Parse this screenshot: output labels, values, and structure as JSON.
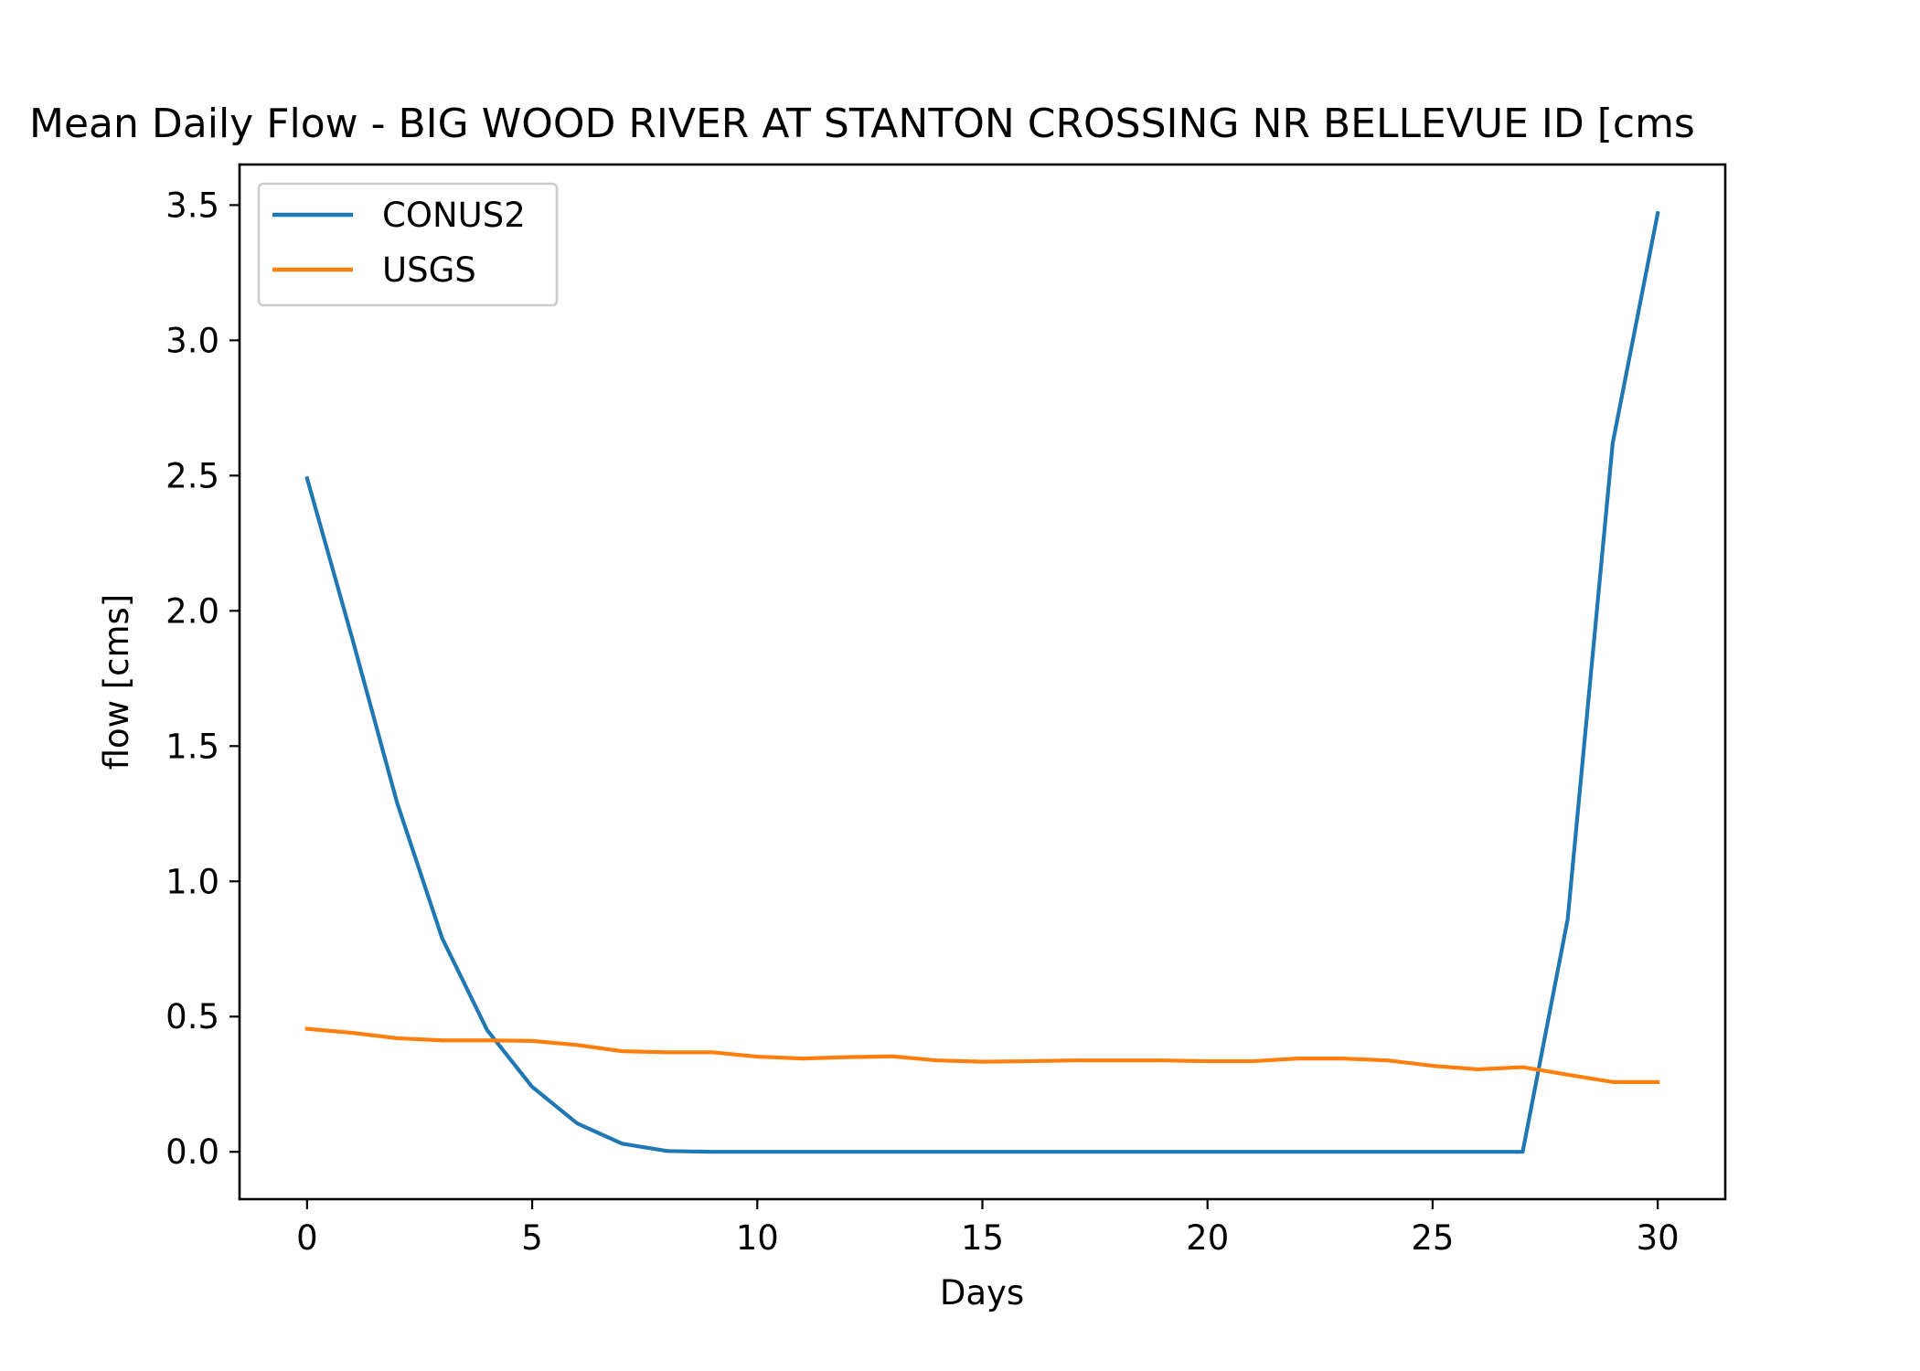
{
  "chart_data": {
    "type": "line",
    "title": "Mean Daily Flow - BIG WOOD RIVER AT STANTON CROSSING NR BELLEVUE ID [cms",
    "xlabel": "Days",
    "ylabel": "flow [cms]",
    "xlim": [
      -1.5,
      31.5
    ],
    "ylim": [
      -0.175,
      3.65
    ],
    "xticks": [
      0,
      5,
      10,
      15,
      20,
      25,
      30
    ],
    "yticks": [
      0.0,
      0.5,
      1.0,
      1.5,
      2.0,
      2.5,
      3.0,
      3.5
    ],
    "ytick_labels": [
      "0.0",
      "0.5",
      "1.0",
      "1.5",
      "2.0",
      "2.5",
      "3.0",
      "3.5"
    ],
    "grid": false,
    "legend_position": "top-left",
    "x": [
      0,
      1,
      2,
      3,
      4,
      5,
      6,
      7,
      8,
      9,
      10,
      11,
      12,
      13,
      14,
      15,
      16,
      17,
      18,
      19,
      20,
      21,
      22,
      23,
      24,
      25,
      26,
      27,
      28,
      29,
      30
    ],
    "series": [
      {
        "name": "CONUS2",
        "color": "#1f77b4",
        "values": [
          2.49,
          1.9,
          1.29,
          0.79,
          0.45,
          0.24,
          0.105,
          0.03,
          0.003,
          0.0,
          0.0,
          0.0,
          0.0,
          0.0,
          0.0,
          0.0,
          0.0,
          0.0,
          0.0,
          0.0,
          0.0,
          0.0,
          0.0,
          0.0,
          0.0,
          0.0,
          0.0,
          0.0,
          0.86,
          2.62,
          3.47
        ]
      },
      {
        "name": "USGS",
        "color": "#ff7f0e",
        "values": [
          0.455,
          0.44,
          0.42,
          0.412,
          0.412,
          0.41,
          0.395,
          0.372,
          0.368,
          0.368,
          0.352,
          0.345,
          0.35,
          0.353,
          0.338,
          0.333,
          0.335,
          0.338,
          0.338,
          0.338,
          0.335,
          0.335,
          0.345,
          0.345,
          0.338,
          0.318,
          0.305,
          0.313,
          0.285,
          0.258,
          0.258
        ]
      }
    ]
  }
}
